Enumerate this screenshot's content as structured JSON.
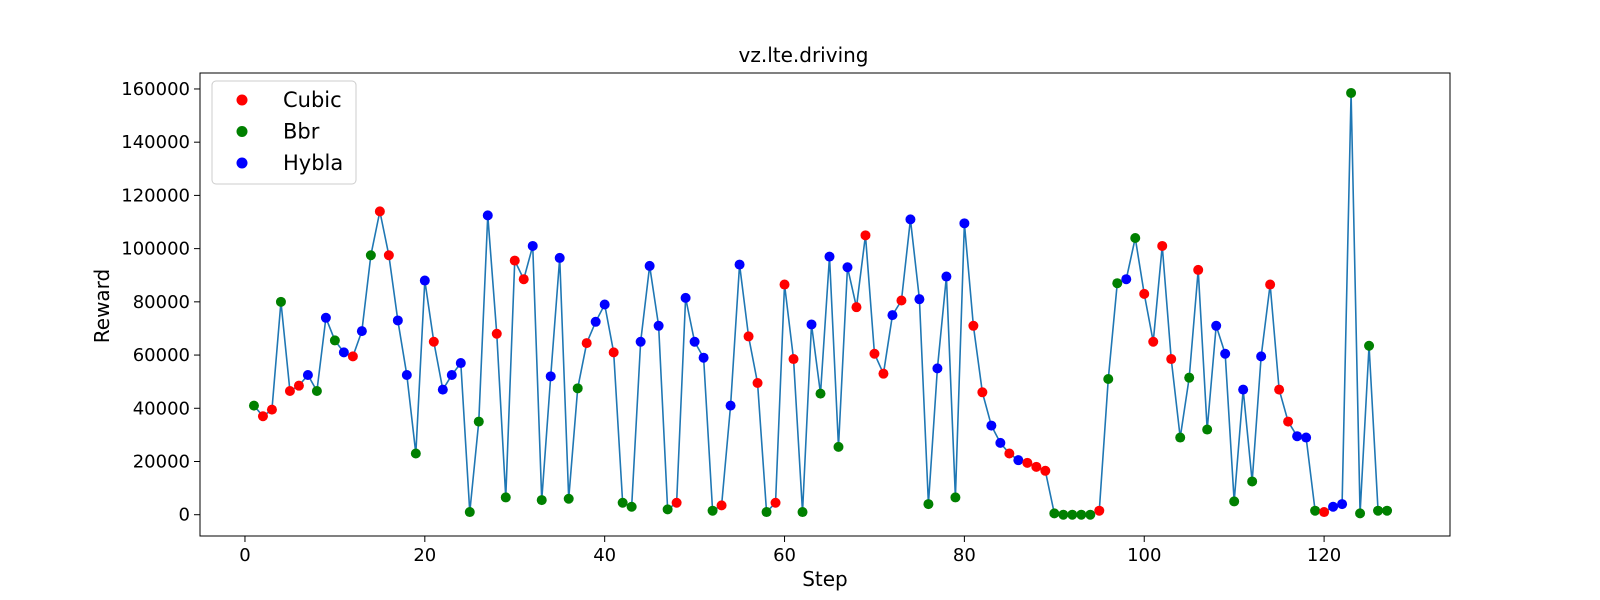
{
  "chart_data": {
    "type": "line",
    "title": "vz.lte.driving",
    "xlabel": "Step",
    "ylabel": "Reward",
    "xlim": [
      -5,
      134
    ],
    "ylim": [
      -8000,
      166000
    ],
    "xticks": [
      0,
      20,
      40,
      60,
      80,
      100,
      120
    ],
    "yticks": [
      0,
      20000,
      40000,
      60000,
      80000,
      100000,
      120000,
      140000,
      160000
    ],
    "grid": false,
    "legend_position": "top-left",
    "line_color": "#1f77b4",
    "marker_colors": {
      "Cubic": "#ff0000",
      "Bbr": "#008000",
      "Hybla": "#0000ff"
    },
    "legend": [
      "Cubic",
      "Bbr",
      "Hybla"
    ],
    "points": [
      {
        "x": 1,
        "y": 41000,
        "alg": "Bbr"
      },
      {
        "x": 2,
        "y": 37000,
        "alg": "Cubic"
      },
      {
        "x": 3,
        "y": 39500,
        "alg": "Cubic"
      },
      {
        "x": 4,
        "y": 80000,
        "alg": "Bbr"
      },
      {
        "x": 5,
        "y": 46500,
        "alg": "Cubic"
      },
      {
        "x": 6,
        "y": 48500,
        "alg": "Cubic"
      },
      {
        "x": 7,
        "y": 52500,
        "alg": "Hybla"
      },
      {
        "x": 8,
        "y": 46500,
        "alg": "Bbr"
      },
      {
        "x": 9,
        "y": 74000,
        "alg": "Hybla"
      },
      {
        "x": 10,
        "y": 65500,
        "alg": "Bbr"
      },
      {
        "x": 11,
        "y": 61000,
        "alg": "Hybla"
      },
      {
        "x": 12,
        "y": 59500,
        "alg": "Cubic"
      },
      {
        "x": 13,
        "y": 69000,
        "alg": "Hybla"
      },
      {
        "x": 14,
        "y": 97500,
        "alg": "Bbr"
      },
      {
        "x": 15,
        "y": 114000,
        "alg": "Cubic"
      },
      {
        "x": 16,
        "y": 97500,
        "alg": "Cubic"
      },
      {
        "x": 17,
        "y": 73000,
        "alg": "Hybla"
      },
      {
        "x": 18,
        "y": 52500,
        "alg": "Hybla"
      },
      {
        "x": 19,
        "y": 23000,
        "alg": "Bbr"
      },
      {
        "x": 20,
        "y": 88000,
        "alg": "Hybla"
      },
      {
        "x": 21,
        "y": 65000,
        "alg": "Cubic"
      },
      {
        "x": 22,
        "y": 47000,
        "alg": "Hybla"
      },
      {
        "x": 23,
        "y": 52500,
        "alg": "Hybla"
      },
      {
        "x": 24,
        "y": 57000,
        "alg": "Hybla"
      },
      {
        "x": 25,
        "y": 1000,
        "alg": "Bbr"
      },
      {
        "x": 26,
        "y": 35000,
        "alg": "Bbr"
      },
      {
        "x": 27,
        "y": 112500,
        "alg": "Hybla"
      },
      {
        "x": 28,
        "y": 68000,
        "alg": "Cubic"
      },
      {
        "x": 29,
        "y": 6500,
        "alg": "Bbr"
      },
      {
        "x": 30,
        "y": 95500,
        "alg": "Cubic"
      },
      {
        "x": 31,
        "y": 88500,
        "alg": "Cubic"
      },
      {
        "x": 32,
        "y": 101000,
        "alg": "Hybla"
      },
      {
        "x": 33,
        "y": 5500,
        "alg": "Bbr"
      },
      {
        "x": 34,
        "y": 52000,
        "alg": "Hybla"
      },
      {
        "x": 35,
        "y": 96500,
        "alg": "Hybla"
      },
      {
        "x": 36,
        "y": 6000,
        "alg": "Bbr"
      },
      {
        "x": 37,
        "y": 47500,
        "alg": "Bbr"
      },
      {
        "x": 38,
        "y": 64500,
        "alg": "Cubic"
      },
      {
        "x": 39,
        "y": 72500,
        "alg": "Hybla"
      },
      {
        "x": 40,
        "y": 79000,
        "alg": "Hybla"
      },
      {
        "x": 41,
        "y": 61000,
        "alg": "Cubic"
      },
      {
        "x": 42,
        "y": 4500,
        "alg": "Bbr"
      },
      {
        "x": 43,
        "y": 3000,
        "alg": "Bbr"
      },
      {
        "x": 44,
        "y": 65000,
        "alg": "Hybla"
      },
      {
        "x": 45,
        "y": 93500,
        "alg": "Hybla"
      },
      {
        "x": 46,
        "y": 71000,
        "alg": "Hybla"
      },
      {
        "x": 47,
        "y": 2000,
        "alg": "Bbr"
      },
      {
        "x": 48,
        "y": 4500,
        "alg": "Cubic"
      },
      {
        "x": 49,
        "y": 81500,
        "alg": "Hybla"
      },
      {
        "x": 50,
        "y": 65000,
        "alg": "Hybla"
      },
      {
        "x": 51,
        "y": 59000,
        "alg": "Hybla"
      },
      {
        "x": 52,
        "y": 1500,
        "alg": "Bbr"
      },
      {
        "x": 53,
        "y": 3500,
        "alg": "Cubic"
      },
      {
        "x": 54,
        "y": 41000,
        "alg": "Hybla"
      },
      {
        "x": 55,
        "y": 94000,
        "alg": "Hybla"
      },
      {
        "x": 56,
        "y": 67000,
        "alg": "Cubic"
      },
      {
        "x": 57,
        "y": 49500,
        "alg": "Cubic"
      },
      {
        "x": 58,
        "y": 1000,
        "alg": "Bbr"
      },
      {
        "x": 59,
        "y": 4500,
        "alg": "Cubic"
      },
      {
        "x": 60,
        "y": 86500,
        "alg": "Cubic"
      },
      {
        "x": 61,
        "y": 58500,
        "alg": "Cubic"
      },
      {
        "x": 62,
        "y": 1000,
        "alg": "Bbr"
      },
      {
        "x": 63,
        "y": 71500,
        "alg": "Hybla"
      },
      {
        "x": 64,
        "y": 45500,
        "alg": "Bbr"
      },
      {
        "x": 65,
        "y": 97000,
        "alg": "Hybla"
      },
      {
        "x": 66,
        "y": 25500,
        "alg": "Bbr"
      },
      {
        "x": 67,
        "y": 93000,
        "alg": "Hybla"
      },
      {
        "x": 68,
        "y": 78000,
        "alg": "Cubic"
      },
      {
        "x": 69,
        "y": 105000,
        "alg": "Cubic"
      },
      {
        "x": 70,
        "y": 60500,
        "alg": "Cubic"
      },
      {
        "x": 71,
        "y": 53000,
        "alg": "Cubic"
      },
      {
        "x": 72,
        "y": 75000,
        "alg": "Hybla"
      },
      {
        "x": 73,
        "y": 80500,
        "alg": "Cubic"
      },
      {
        "x": 74,
        "y": 111000,
        "alg": "Hybla"
      },
      {
        "x": 75,
        "y": 81000,
        "alg": "Hybla"
      },
      {
        "x": 76,
        "y": 4000,
        "alg": "Bbr"
      },
      {
        "x": 77,
        "y": 55000,
        "alg": "Hybla"
      },
      {
        "x": 78,
        "y": 89500,
        "alg": "Hybla"
      },
      {
        "x": 79,
        "y": 6500,
        "alg": "Bbr"
      },
      {
        "x": 80,
        "y": 109500,
        "alg": "Hybla"
      },
      {
        "x": 81,
        "y": 71000,
        "alg": "Cubic"
      },
      {
        "x": 82,
        "y": 46000,
        "alg": "Cubic"
      },
      {
        "x": 83,
        "y": 33500,
        "alg": "Hybla"
      },
      {
        "x": 84,
        "y": 27000,
        "alg": "Hybla"
      },
      {
        "x": 85,
        "y": 23000,
        "alg": "Cubic"
      },
      {
        "x": 86,
        "y": 20500,
        "alg": "Hybla"
      },
      {
        "x": 87,
        "y": 19500,
        "alg": "Cubic"
      },
      {
        "x": 88,
        "y": 18000,
        "alg": "Cubic"
      },
      {
        "x": 89,
        "y": 16500,
        "alg": "Cubic"
      },
      {
        "x": 90,
        "y": 500,
        "alg": "Bbr"
      },
      {
        "x": 91,
        "y": 0,
        "alg": "Bbr"
      },
      {
        "x": 92,
        "y": 0,
        "alg": "Bbr"
      },
      {
        "x": 93,
        "y": 0,
        "alg": "Bbr"
      },
      {
        "x": 94,
        "y": 0,
        "alg": "Bbr"
      },
      {
        "x": 95,
        "y": 1500,
        "alg": "Cubic"
      },
      {
        "x": 96,
        "y": 51000,
        "alg": "Bbr"
      },
      {
        "x": 97,
        "y": 87000,
        "alg": "Bbr"
      },
      {
        "x": 98,
        "y": 88500,
        "alg": "Hybla"
      },
      {
        "x": 99,
        "y": 104000,
        "alg": "Bbr"
      },
      {
        "x": 100,
        "y": 83000,
        "alg": "Cubic"
      },
      {
        "x": 101,
        "y": 65000,
        "alg": "Cubic"
      },
      {
        "x": 102,
        "y": 101000,
        "alg": "Cubic"
      },
      {
        "x": 103,
        "y": 58500,
        "alg": "Cubic"
      },
      {
        "x": 104,
        "y": 29000,
        "alg": "Bbr"
      },
      {
        "x": 105,
        "y": 51500,
        "alg": "Bbr"
      },
      {
        "x": 106,
        "y": 92000,
        "alg": "Cubic"
      },
      {
        "x": 107,
        "y": 32000,
        "alg": "Bbr"
      },
      {
        "x": 108,
        "y": 71000,
        "alg": "Hybla"
      },
      {
        "x": 109,
        "y": 60500,
        "alg": "Hybla"
      },
      {
        "x": 110,
        "y": 5000,
        "alg": "Bbr"
      },
      {
        "x": 111,
        "y": 47000,
        "alg": "Hybla"
      },
      {
        "x": 112,
        "y": 12500,
        "alg": "Bbr"
      },
      {
        "x": 113,
        "y": 59500,
        "alg": "Hybla"
      },
      {
        "x": 114,
        "y": 86500,
        "alg": "Cubic"
      },
      {
        "x": 115,
        "y": 47000,
        "alg": "Cubic"
      },
      {
        "x": 116,
        "y": 35000,
        "alg": "Cubic"
      },
      {
        "x": 117,
        "y": 29500,
        "alg": "Hybla"
      },
      {
        "x": 118,
        "y": 29000,
        "alg": "Hybla"
      },
      {
        "x": 119,
        "y": 1500,
        "alg": "Bbr"
      },
      {
        "x": 120,
        "y": 1000,
        "alg": "Cubic"
      },
      {
        "x": 121,
        "y": 3000,
        "alg": "Hybla"
      },
      {
        "x": 122,
        "y": 4000,
        "alg": "Hybla"
      },
      {
        "x": 123,
        "y": 158500,
        "alg": "Bbr"
      },
      {
        "x": 124,
        "y": 500,
        "alg": "Bbr"
      },
      {
        "x": 125,
        "y": 63500,
        "alg": "Bbr"
      },
      {
        "x": 126,
        "y": 1500,
        "alg": "Bbr"
      },
      {
        "x": 127,
        "y": 1500,
        "alg": "Bbr"
      }
    ]
  }
}
